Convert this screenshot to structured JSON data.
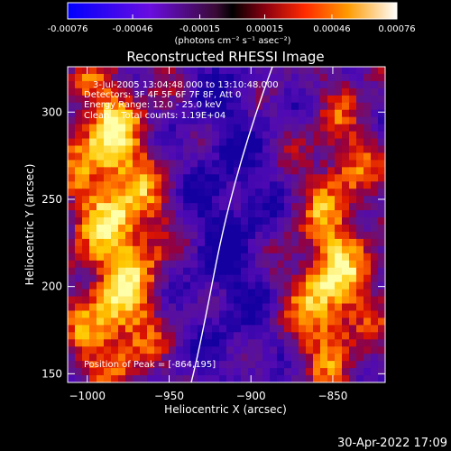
{
  "chart_data": {
    "type": "heatmap",
    "title": "Reconstructed RHESSI Image",
    "xlabel": "Heliocentric X (arcsec)",
    "ylabel": "Heliocentric Y (arcsec)",
    "xlim": [
      -1012,
      -818
    ],
    "ylim": [
      145,
      326
    ],
    "x_ticks": [
      -1000,
      -950,
      -900,
      -850
    ],
    "y_ticks": [
      150,
      200,
      250,
      300
    ],
    "colorbar": {
      "min": -0.00076,
      "max": 0.00076,
      "ticks": [
        "-0.00076",
        "-0.00046",
        "-0.00015",
        "0.00015",
        "0.00046",
        "0.00076"
      ],
      "units_text": "(photons cm⁻² s⁻¹ asec⁻²)"
    },
    "annotations": [
      "3-Jul-2005 13:04:48.000 to 13:10:48.000",
      "Detectors: 3F 4F 5F 6F 7F 8F, Att 0",
      "Energy Range: 12.0 - 25.0 keV",
      "Clean    Total counts: 1.19E+04"
    ],
    "peak_label": "Position of Peak = [-864,195]",
    "peak": [
      -864,
      195
    ],
    "grid": false,
    "timestamp": "30-Apr-2022 17:09",
    "colors": {
      "background": "#000000",
      "foreground": "#ffffff",
      "limb": "#ffffff"
    }
  }
}
